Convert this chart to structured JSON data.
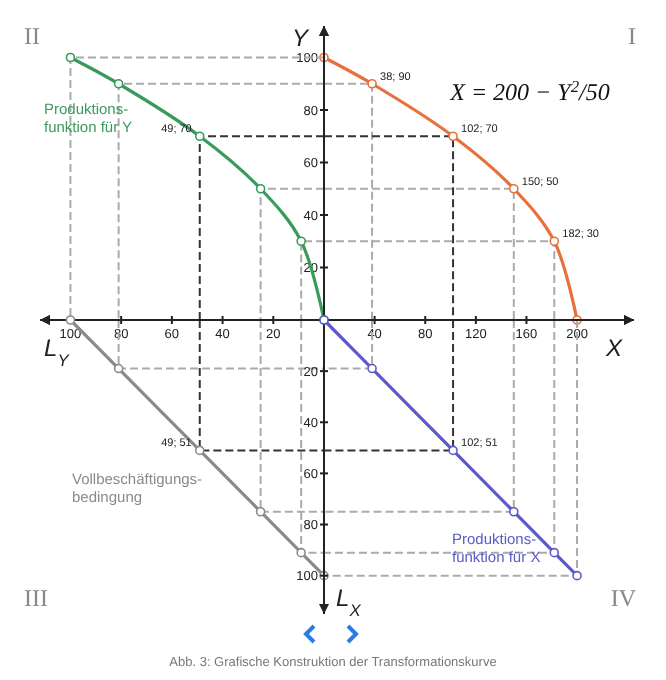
{
  "chart_data": [
    {
      "type": "line",
      "xlabel": "X",
      "ylabel": "Y",
      "xlim": [
        0,
        245
      ],
      "ylim": [
        0,
        112
      ],
      "xticks": [
        40,
        80,
        120,
        160,
        200
      ],
      "yticks": [
        20,
        40,
        60,
        80,
        100
      ],
      "marker": "circle",
      "series": [
        {
          "color": "#aaaaaa",
          "line_style": "dashed",
          "marker": "none",
          "x": [
            0,
            38,
            38,
            null,
            0,
            150,
            150,
            null,
            0,
            182,
            182
          ],
          "values": [
            90,
            90,
            0,
            null,
            50,
            50,
            0,
            null,
            30,
            30,
            0
          ]
        },
        {
          "color": "#333333",
          "line_style": "dashed",
          "marker": "none",
          "x": [
            0,
            102,
            102
          ],
          "values": [
            70,
            70,
            0
          ]
        },
        {
          "color": "#e8703a",
          "line_style": "solid",
          "x": [
            0,
            38,
            102,
            150,
            182,
            200
          ],
          "values": [
            100,
            90,
            70,
            50,
            30,
            0
          ]
        }
      ],
      "annotations": [
        "I",
        "X = 200 − Y$^{2}$/50",
        {
          "text": "38; 90",
          "x": 38,
          "y": 90
        },
        {
          "text": "102; 70",
          "x": 102,
          "y": 70
        },
        {
          "text": "150; 50",
          "x": 150,
          "y": 50
        },
        {
          "text": "182; 30",
          "x": 182,
          "y": 30
        }
      ]
    },
    {
      "type": "line",
      "xlabel": "L$_{Y}$",
      "xlim": [
        112,
        0
      ],
      "ylim": [
        0,
        112
      ],
      "xticks": [
        100,
        80,
        60,
        40,
        20
      ],
      "yticks": [
        20,
        40,
        60,
        80,
        100
      ],
      "tick_labels": "x",
      "marker": "circle",
      "series": [
        {
          "color": "#aaaaaa",
          "line_style": "dashed",
          "marker": "none",
          "x": [
            0,
            100,
            100,
            null,
            0,
            81,
            81,
            null,
            0,
            25,
            25,
            null,
            0,
            9,
            9
          ],
          "values": [
            100,
            100,
            0,
            null,
            90,
            90,
            0,
            null,
            50,
            50,
            0,
            null,
            30,
            30,
            0
          ]
        },
        {
          "color": "#333333",
          "line_style": "dashed",
          "marker": "none",
          "x": [
            0,
            49,
            49
          ],
          "values": [
            70,
            70,
            0
          ]
        },
        {
          "name": "Produktions-funktion für Y",
          "color": "#3a9a5c",
          "line_style": "solid",
          "x": [
            100,
            81,
            49,
            25,
            9,
            0
          ],
          "values": [
            100,
            90,
            70,
            50,
            30,
            0
          ]
        }
      ],
      "annotations": [
        "II",
        {
          "text": "49; 70",
          "x": 49,
          "y": 70
        }
      ]
    },
    {
      "type": "line",
      "xlim": [
        112,
        0
      ],
      "ylim": [
        100,
        0
      ],
      "xticks": [
        100,
        80,
        60,
        40,
        20
      ],
      "yticks": [
        20,
        40,
        60,
        80,
        100
      ],
      "tick_labels": false,
      "marker": "circle",
      "series": [
        {
          "color": "#aaaaaa",
          "line_style": "dashed",
          "marker": "none",
          "x": [
            81,
            81,
            0,
            null,
            25,
            25,
            0,
            null,
            9,
            9,
            0
          ],
          "values": [
            0,
            19,
            19,
            null,
            0,
            75,
            75,
            null,
            0,
            91,
            91
          ]
        },
        {
          "color": "#333333",
          "line_style": "dashed",
          "marker": "none",
          "x": [
            49,
            49,
            0
          ],
          "values": [
            0,
            51,
            51
          ]
        },
        {
          "name": "Vollbeschäftigungs-bedingung",
          "color": "#8a8a8a",
          "line_style": "solid",
          "x": [
            100,
            81,
            49,
            25,
            9,
            0
          ],
          "values": [
            0,
            19,
            51,
            75,
            91,
            100
          ]
        }
      ],
      "annotations": [
        "III",
        "Abb. 3: Grafische Konstruktion der Transformationskurve",
        {
          "text": "49; 51",
          "x": 49,
          "y": 51
        }
      ]
    },
    {
      "type": "line",
      "ylabel": "L$_{X}$",
      "xlim": [
        0,
        245
      ],
      "ylim": [
        115,
        0
      ],
      "xticks": [
        40,
        80,
        120,
        160,
        200
      ],
      "yticks": [
        20,
        40,
        60,
        80,
        100
      ],
      "tick_labels": "y",
      "marker": "circle",
      "series": [
        {
          "color": "#aaaaaa",
          "line_style": "dashed",
          "marker": "none",
          "x": [
            38,
            38,
            0,
            null,
            150,
            150,
            0,
            null,
            182,
            182,
            0,
            null,
            200,
            200,
            0
          ],
          "values": [
            0,
            19,
            19,
            null,
            0,
            75,
            75,
            null,
            0,
            91,
            91,
            null,
            0,
            100,
            100
          ]
        },
        {
          "color": "#333333",
          "line_style": "dashed",
          "marker": "none",
          "x": [
            102,
            102,
            0
          ],
          "values": [
            0,
            51,
            51
          ]
        },
        {
          "name": "Produktions-funktion für X",
          "color": "#5a5ac8",
          "line_style": "solid",
          "x": [
            0,
            38,
            102,
            150,
            182,
            200
          ],
          "values": [
            0,
            19,
            51,
            75,
            91,
            100
          ]
        }
      ],
      "annotations": [
        "IV",
        {
          "text": "102; 51",
          "x": 102,
          "y": 51
        }
      ]
    }
  ]
}
